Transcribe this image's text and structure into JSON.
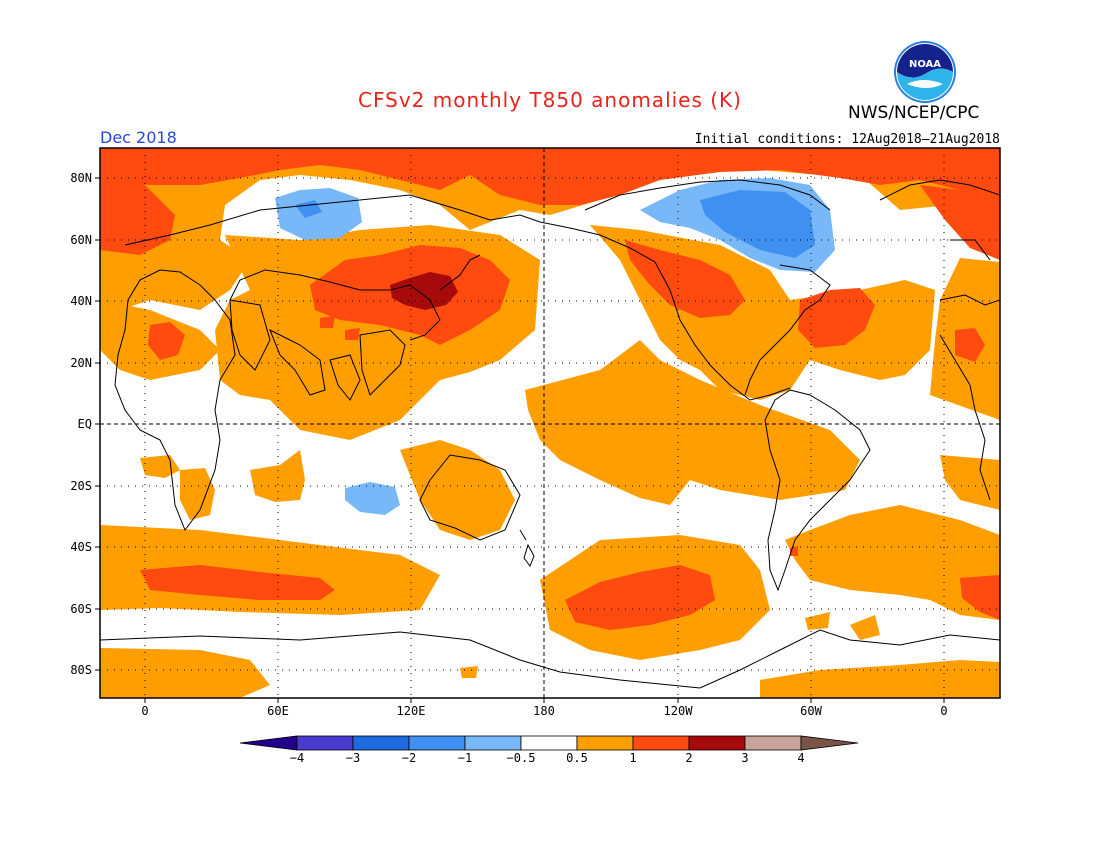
{
  "header": {
    "title": "CFSv2 monthly T850 anomalies (K)",
    "agency": "NWS/NCEP/CPC",
    "logo_text": "NOAA",
    "month_label": "Dec 2018",
    "initial_conditions": "Initial conditions: 12Aug2018–21Aug2018"
  },
  "map": {
    "latitude_labels": [
      "80N",
      "60N",
      "40N",
      "20N",
      "EQ",
      "20S",
      "40S",
      "60S",
      "80S"
    ],
    "longitude_labels": [
      "0",
      "60E",
      "120E",
      "180",
      "120W",
      "60W",
      "0"
    ]
  },
  "colorbar": {
    "tick_labels": [
      "−4",
      "−3",
      "−2",
      "−1",
      "−0.5",
      "0.5",
      "1",
      "2",
      "3",
      "4"
    ],
    "colors": [
      "#23008c",
      "#4a3ad0",
      "#1e6be0",
      "#3f90f0",
      "#78b8f8",
      "#ffffff",
      "#ff9e00",
      "#ff4a10",
      "#a60a0a",
      "#c9a49a",
      "#7a5446"
    ]
  },
  "colors": {
    "title": "#e8231c",
    "month": "#2448d8",
    "warm_1": "#ff9e00",
    "warm_2": "#ff4a10",
    "warm_3": "#a60a0a",
    "cool_1": "#78b8f8",
    "cool_2": "#3f90f0"
  }
}
